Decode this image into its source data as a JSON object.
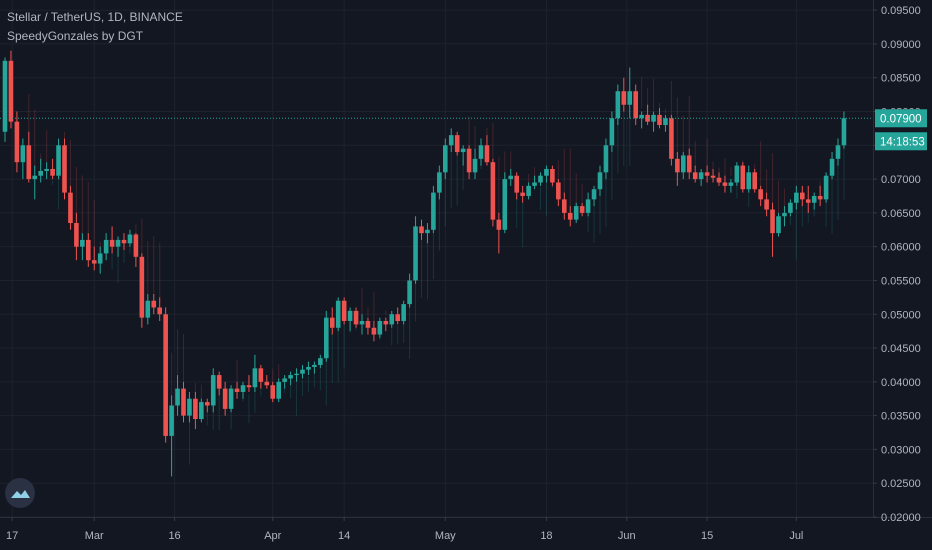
{
  "header": {
    "symbol_line": "Stellar / TetherUS, 1D, BINANCE",
    "indicator_line": "SpeedyGonzales by DGT"
  },
  "colors": {
    "background": "#131722",
    "grid": "#1e222d",
    "up": "#26a69a",
    "down": "#ef5350",
    "axis_text": "#b2b5be",
    "last_price": "#26a69a",
    "logo": "#2a3143",
    "logo_icon": "#8fd1e6"
  },
  "icons": {
    "logo": "tradingview-cloud-icon"
  },
  "chart_data": {
    "type": "candlestick",
    "exchange": "BINANCE",
    "timeframe": "1D",
    "y_axis": {
      "ticks": [
        "0.02000",
        "0.02500",
        "0.03000",
        "0.03500",
        "0.04000",
        "0.04500",
        "0.05000",
        "0.05500",
        "0.06000",
        "0.06500",
        "0.07000",
        "0.07500",
        "0.08000",
        "0.08500",
        "0.09000",
        "0.09500"
      ],
      "range": [
        0.02,
        0.0965
      ],
      "side": "right"
    },
    "x_axis": {
      "ticks": [
        "17",
        "Mar",
        "16",
        "Apr",
        "14",
        "May",
        "18",
        "Jun",
        "15",
        "Jul"
      ]
    },
    "last_price": {
      "value": "0.07900",
      "countdown": "14:18:53"
    },
    "grid": true,
    "candles": [
      [
        0.077,
        0.088,
        0.0755,
        0.0875
      ],
      [
        0.0875,
        0.089,
        0.0775,
        0.0785
      ],
      [
        0.0785,
        0.08,
        0.071,
        0.0725
      ],
      [
        0.0725,
        0.076,
        0.07,
        0.075
      ],
      [
        0.075,
        0.077,
        0.0695,
        0.07
      ],
      [
        0.07,
        0.072,
        0.067,
        0.0705
      ],
      [
        0.0705,
        0.073,
        0.0695,
        0.0712
      ],
      [
        0.0712,
        0.0725,
        0.07,
        0.0715
      ],
      [
        0.0715,
        0.073,
        0.07,
        0.0705
      ],
      [
        0.0705,
        0.076,
        0.07,
        0.075
      ],
      [
        0.075,
        0.076,
        0.067,
        0.068
      ],
      [
        0.068,
        0.069,
        0.0625,
        0.0635
      ],
      [
        0.0635,
        0.065,
        0.058,
        0.06
      ],
      [
        0.06,
        0.062,
        0.058,
        0.061
      ],
      [
        0.061,
        0.062,
        0.057,
        0.058
      ],
      [
        0.058,
        0.06,
        0.0565,
        0.0575
      ],
      [
        0.0575,
        0.06,
        0.056,
        0.059
      ],
      [
        0.059,
        0.062,
        0.058,
        0.061
      ],
      [
        0.061,
        0.063,
        0.059,
        0.06
      ],
      [
        0.06,
        0.0615,
        0.0585,
        0.061
      ],
      [
        0.061,
        0.062,
        0.0595,
        0.0605
      ],
      [
        0.0605,
        0.0625,
        0.06,
        0.0618
      ],
      [
        0.0618,
        0.062,
        0.057,
        0.0585
      ],
      [
        0.0585,
        0.059,
        0.048,
        0.0495
      ],
      [
        0.0495,
        0.053,
        0.0485,
        0.052
      ],
      [
        0.052,
        0.053,
        0.05,
        0.051
      ],
      [
        0.051,
        0.0525,
        0.049,
        0.05
      ],
      [
        0.05,
        0.051,
        0.031,
        0.032
      ],
      [
        0.032,
        0.038,
        0.026,
        0.0365
      ],
      [
        0.0365,
        0.041,
        0.035,
        0.039
      ],
      [
        0.039,
        0.04,
        0.034,
        0.035
      ],
      [
        0.035,
        0.0385,
        0.034,
        0.0375
      ],
      [
        0.0375,
        0.0385,
        0.033,
        0.0345
      ],
      [
        0.0345,
        0.0375,
        0.034,
        0.037
      ],
      [
        0.037,
        0.0375,
        0.0355,
        0.0365
      ],
      [
        0.0365,
        0.042,
        0.0355,
        0.041
      ],
      [
        0.041,
        0.0415,
        0.038,
        0.039
      ],
      [
        0.039,
        0.04,
        0.035,
        0.036
      ],
      [
        0.036,
        0.0395,
        0.0355,
        0.039
      ],
      [
        0.039,
        0.04,
        0.0375,
        0.0385
      ],
      [
        0.0385,
        0.04,
        0.0375,
        0.0395
      ],
      [
        0.0395,
        0.041,
        0.0385,
        0.0392
      ],
      [
        0.0392,
        0.044,
        0.0385,
        0.042
      ],
      [
        0.042,
        0.0425,
        0.039,
        0.04
      ],
      [
        0.04,
        0.041,
        0.039,
        0.0395
      ],
      [
        0.0395,
        0.04,
        0.037,
        0.0375
      ],
      [
        0.0375,
        0.0405,
        0.037,
        0.04
      ],
      [
        0.04,
        0.041,
        0.039,
        0.0405
      ],
      [
        0.0405,
        0.0415,
        0.0395,
        0.041
      ],
      [
        0.041,
        0.042,
        0.04,
        0.0412
      ],
      [
        0.0412,
        0.0425,
        0.0405,
        0.0418
      ],
      [
        0.0418,
        0.043,
        0.041,
        0.0422
      ],
      [
        0.0422,
        0.043,
        0.0412,
        0.0425
      ],
      [
        0.0425,
        0.044,
        0.042,
        0.0435
      ],
      [
        0.0435,
        0.0505,
        0.043,
        0.0495
      ],
      [
        0.0495,
        0.051,
        0.047,
        0.048
      ],
      [
        0.048,
        0.0525,
        0.0475,
        0.052
      ],
      [
        0.052,
        0.0525,
        0.0485,
        0.049
      ],
      [
        0.049,
        0.051,
        0.0475,
        0.0505
      ],
      [
        0.0505,
        0.051,
        0.048,
        0.0485
      ],
      [
        0.0485,
        0.05,
        0.047,
        0.049
      ],
      [
        0.049,
        0.0495,
        0.047,
        0.048
      ],
      [
        0.048,
        0.049,
        0.046,
        0.047
      ],
      [
        0.047,
        0.0495,
        0.0465,
        0.049
      ],
      [
        0.049,
        0.0495,
        0.0475,
        0.0485
      ],
      [
        0.0485,
        0.0505,
        0.048,
        0.05
      ],
      [
        0.05,
        0.051,
        0.0485,
        0.049
      ],
      [
        0.049,
        0.052,
        0.0485,
        0.0515
      ],
      [
        0.0515,
        0.056,
        0.051,
        0.055
      ],
      [
        0.055,
        0.0645,
        0.0545,
        0.063
      ],
      [
        0.063,
        0.064,
        0.061,
        0.062
      ],
      [
        0.062,
        0.0635,
        0.0605,
        0.0625
      ],
      [
        0.0625,
        0.069,
        0.062,
        0.068
      ],
      [
        0.068,
        0.072,
        0.067,
        0.071
      ],
      [
        0.071,
        0.076,
        0.07,
        0.075
      ],
      [
        0.075,
        0.0775,
        0.074,
        0.0765
      ],
      [
        0.0765,
        0.077,
        0.0735,
        0.074
      ],
      [
        0.074,
        0.075,
        0.072,
        0.0745
      ],
      [
        0.0745,
        0.075,
        0.07,
        0.071
      ],
      [
        0.071,
        0.0745,
        0.07,
        0.073
      ],
      [
        0.073,
        0.076,
        0.072,
        0.075
      ],
      [
        0.075,
        0.0765,
        0.072,
        0.0725
      ],
      [
        0.0725,
        0.073,
        0.063,
        0.064
      ],
      [
        0.064,
        0.065,
        0.059,
        0.0625
      ],
      [
        0.0625,
        0.071,
        0.062,
        0.07
      ],
      [
        0.07,
        0.0715,
        0.069,
        0.0705
      ],
      [
        0.0705,
        0.071,
        0.067,
        0.068
      ],
      [
        0.068,
        0.069,
        0.0665,
        0.0675
      ],
      [
        0.0675,
        0.0695,
        0.067,
        0.069
      ],
      [
        0.069,
        0.0705,
        0.0685,
        0.0695
      ],
      [
        0.0695,
        0.071,
        0.069,
        0.0705
      ],
      [
        0.0705,
        0.072,
        0.0695,
        0.0715
      ],
      [
        0.0715,
        0.072,
        0.069,
        0.0695
      ],
      [
        0.0695,
        0.07,
        0.066,
        0.067
      ],
      [
        0.067,
        0.068,
        0.064,
        0.065
      ],
      [
        0.065,
        0.066,
        0.063,
        0.064
      ],
      [
        0.064,
        0.0665,
        0.0635,
        0.066
      ],
      [
        0.066,
        0.0665,
        0.0645,
        0.065
      ],
      [
        0.065,
        0.068,
        0.0645,
        0.067
      ],
      [
        0.067,
        0.069,
        0.066,
        0.0685
      ],
      [
        0.0685,
        0.072,
        0.0675,
        0.071
      ],
      [
        0.071,
        0.076,
        0.07,
        0.075
      ],
      [
        0.075,
        0.08,
        0.074,
        0.079
      ],
      [
        0.079,
        0.084,
        0.078,
        0.083
      ],
      [
        0.083,
        0.085,
        0.08,
        0.081
      ],
      [
        0.081,
        0.0865,
        0.079,
        0.083
      ],
      [
        0.083,
        0.084,
        0.078,
        0.079
      ],
      [
        0.079,
        0.08,
        0.0775,
        0.0795
      ],
      [
        0.0795,
        0.081,
        0.078,
        0.0785
      ],
      [
        0.0785,
        0.08,
        0.077,
        0.0795
      ],
      [
        0.0795,
        0.0805,
        0.0775,
        0.078
      ],
      [
        0.078,
        0.0795,
        0.077,
        0.079
      ],
      [
        0.079,
        0.0795,
        0.072,
        0.073
      ],
      [
        0.073,
        0.074,
        0.069,
        0.071
      ],
      [
        0.071,
        0.074,
        0.07,
        0.0735
      ],
      [
        0.0735,
        0.0745,
        0.07,
        0.071
      ],
      [
        0.071,
        0.072,
        0.0695,
        0.07
      ],
      [
        0.07,
        0.0715,
        0.069,
        0.071
      ],
      [
        0.071,
        0.072,
        0.0695,
        0.0705
      ],
      [
        0.0705,
        0.0715,
        0.0695,
        0.0702
      ],
      [
        0.0702,
        0.071,
        0.069,
        0.0695
      ],
      [
        0.0695,
        0.0705,
        0.068,
        0.069
      ],
      [
        0.069,
        0.07,
        0.068,
        0.0695
      ],
      [
        0.0695,
        0.0725,
        0.069,
        0.072
      ],
      [
        0.072,
        0.0725,
        0.068,
        0.0685
      ],
      [
        0.0685,
        0.072,
        0.068,
        0.071
      ],
      [
        0.071,
        0.0715,
        0.068,
        0.0685
      ],
      [
        0.0685,
        0.069,
        0.066,
        0.067
      ],
      [
        0.067,
        0.068,
        0.0645,
        0.0655
      ],
      [
        0.0655,
        0.0665,
        0.0585,
        0.062
      ],
      [
        0.062,
        0.065,
        0.0615,
        0.0645
      ],
      [
        0.0645,
        0.066,
        0.063,
        0.065
      ],
      [
        0.065,
        0.067,
        0.0645,
        0.0665
      ],
      [
        0.0665,
        0.069,
        0.0655,
        0.068
      ],
      [
        0.068,
        0.069,
        0.066,
        0.067
      ],
      [
        0.067,
        0.069,
        0.065,
        0.0665
      ],
      [
        0.0665,
        0.068,
        0.0655,
        0.0675
      ],
      [
        0.0675,
        0.069,
        0.066,
        0.067
      ],
      [
        0.067,
        0.071,
        0.0665,
        0.0705
      ],
      [
        0.0705,
        0.074,
        0.07,
        0.073
      ],
      [
        0.073,
        0.076,
        0.072,
        0.075
      ],
      [
        0.075,
        0.08,
        0.0745,
        0.079
      ]
    ],
    "indicator": {
      "name": "SpeedyGonzales by DGT",
      "type": "histogram"
    }
  }
}
